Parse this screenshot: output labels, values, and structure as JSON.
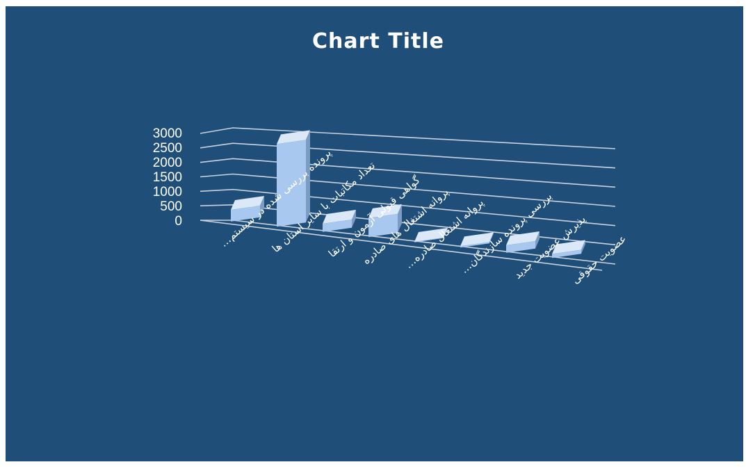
{
  "colors": {
    "background": "#1f4e79",
    "bar_front": "#a9c8ef",
    "bar_top": "#dbe8f8",
    "bar_side": "#7d9cc4",
    "grid": "#c9d3de",
    "text": "#ffffff"
  },
  "chart_data": {
    "type": "bar",
    "style": "3d-column",
    "title": "Chart Title",
    "xlabel": "",
    "ylabel": "",
    "ylim": [
      0,
      3000
    ],
    "yticks": [
      "0",
      "500",
      "1000",
      "1500",
      "2000",
      "2500",
      "3000"
    ],
    "grid": true,
    "legend": "none",
    "categories": [
      "پرونده بررسی شده در سیستم…",
      "تعداد مکاتبات با سایر استان ها",
      "گواهی قبولی آزمون و ارتقا",
      "پروانه اشتغال های صادره",
      "پروانه اشتغال صادره…",
      "بررسی پرونده سازندگان…",
      "پذیرش عضویت جدید",
      "عضویت حقوقی"
    ],
    "values": [
      420,
      3000,
      300,
      700,
      20,
      50,
      280,
      150
    ]
  }
}
